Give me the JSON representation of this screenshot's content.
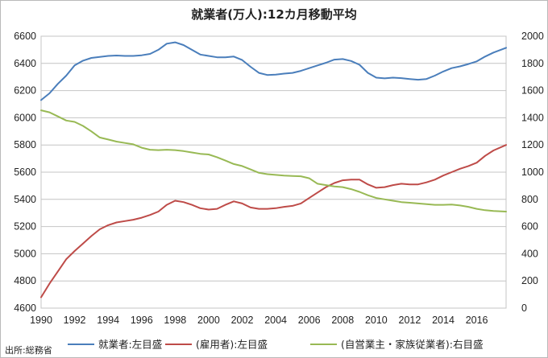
{
  "chart_data": {
    "type": "line",
    "title": "就業者(万人):12カ月移動平均",
    "source": "出所:総務省",
    "x_range": [
      1990,
      2017.75
    ],
    "x_ticks": [
      "1990",
      "1992",
      "1994",
      "1996",
      "1998",
      "2000",
      "2002",
      "2004",
      "2006",
      "2008",
      "2010",
      "2012",
      "2014",
      "2016"
    ],
    "left_axis": {
      "min": 4600,
      "max": 6600,
      "ticks": [
        "4600",
        "4800",
        "5000",
        "5200",
        "5400",
        "5600",
        "5800",
        "6000",
        "6200",
        "6400",
        "6600"
      ]
    },
    "right_axis": {
      "min": 0,
      "max": 2000,
      "ticks": [
        "0",
        "200",
        "400",
        "600",
        "800",
        "1000",
        "1200",
        "1400",
        "1600",
        "1800",
        "2000"
      ]
    },
    "grid": true,
    "legend_position": "bottom",
    "series": [
      {
        "name": "就業者:左目盛",
        "axis": "left",
        "color": "#4a7ebb",
        "points": [
          [
            1990,
            6130
          ],
          [
            1990.5,
            6180
          ],
          [
            1991,
            6250
          ],
          [
            1991.5,
            6310
          ],
          [
            1992,
            6385
          ],
          [
            1992.5,
            6420
          ],
          [
            1993,
            6440
          ],
          [
            1993.5,
            6448
          ],
          [
            1994,
            6455
          ],
          [
            1994.5,
            6458
          ],
          [
            1995,
            6455
          ],
          [
            1995.5,
            6455
          ],
          [
            1996,
            6460
          ],
          [
            1996.5,
            6470
          ],
          [
            1997,
            6500
          ],
          [
            1997.5,
            6545
          ],
          [
            1998,
            6555
          ],
          [
            1998.5,
            6535
          ],
          [
            1999,
            6500
          ],
          [
            1999.5,
            6465
          ],
          [
            2000,
            6455
          ],
          [
            2000.5,
            6445
          ],
          [
            2001,
            6445
          ],
          [
            2001.5,
            6450
          ],
          [
            2002,
            6425
          ],
          [
            2002.5,
            6375
          ],
          [
            2003,
            6330
          ],
          [
            2003.5,
            6315
          ],
          [
            2004,
            6318
          ],
          [
            2004.5,
            6325
          ],
          [
            2005,
            6330
          ],
          [
            2005.5,
            6345
          ],
          [
            2006,
            6365
          ],
          [
            2006.5,
            6385
          ],
          [
            2007,
            6405
          ],
          [
            2007.5,
            6428
          ],
          [
            2008,
            6432
          ],
          [
            2008.5,
            6418
          ],
          [
            2009,
            6390
          ],
          [
            2009.5,
            6330
          ],
          [
            2010,
            6295
          ],
          [
            2010.5,
            6290
          ],
          [
            2011,
            6295
          ],
          [
            2011.5,
            6292
          ],
          [
            2012,
            6285
          ],
          [
            2012.5,
            6280
          ],
          [
            2013,
            6285
          ],
          [
            2013.5,
            6310
          ],
          [
            2014,
            6340
          ],
          [
            2014.5,
            6365
          ],
          [
            2015,
            6378
          ],
          [
            2015.5,
            6395
          ],
          [
            2016,
            6415
          ],
          [
            2016.5,
            6450
          ],
          [
            2017,
            6480
          ],
          [
            2017.75,
            6515
          ]
        ]
      },
      {
        "name": "(雇用者):左目盛",
        "axis": "left",
        "color": "#be4b48",
        "points": [
          [
            1990,
            4680
          ],
          [
            1990.5,
            4780
          ],
          [
            1991,
            4870
          ],
          [
            1991.5,
            4960
          ],
          [
            1992,
            5020
          ],
          [
            1992.5,
            5075
          ],
          [
            1993,
            5130
          ],
          [
            1993.5,
            5180
          ],
          [
            1994,
            5210
          ],
          [
            1994.5,
            5230
          ],
          [
            1995,
            5240
          ],
          [
            1995.5,
            5250
          ],
          [
            1996,
            5265
          ],
          [
            1996.5,
            5285
          ],
          [
            1997,
            5310
          ],
          [
            1997.5,
            5360
          ],
          [
            1998,
            5390
          ],
          [
            1998.5,
            5380
          ],
          [
            1999,
            5360
          ],
          [
            1999.5,
            5335
          ],
          [
            2000,
            5325
          ],
          [
            2000.5,
            5330
          ],
          [
            2001,
            5360
          ],
          [
            2001.5,
            5385
          ],
          [
            2002,
            5370
          ],
          [
            2002.5,
            5340
          ],
          [
            2003,
            5330
          ],
          [
            2003.5,
            5330
          ],
          [
            2004,
            5335
          ],
          [
            2004.5,
            5345
          ],
          [
            2005,
            5352
          ],
          [
            2005.5,
            5370
          ],
          [
            2006,
            5410
          ],
          [
            2006.5,
            5450
          ],
          [
            2007,
            5490
          ],
          [
            2007.5,
            5520
          ],
          [
            2008,
            5540
          ],
          [
            2008.5,
            5545
          ],
          [
            2009,
            5545
          ],
          [
            2009.5,
            5510
          ],
          [
            2010,
            5485
          ],
          [
            2010.5,
            5490
          ],
          [
            2011,
            5505
          ],
          [
            2011.5,
            5515
          ],
          [
            2012,
            5510
          ],
          [
            2012.5,
            5510
          ],
          [
            2013,
            5525
          ],
          [
            2013.5,
            5545
          ],
          [
            2014,
            5575
          ],
          [
            2014.5,
            5600
          ],
          [
            2015,
            5625
          ],
          [
            2015.5,
            5645
          ],
          [
            2016,
            5670
          ],
          [
            2016.5,
            5720
          ],
          [
            2017,
            5760
          ],
          [
            2017.75,
            5800
          ]
        ]
      },
      {
        "name": "(自営業主・家族従業者):右目盛",
        "axis": "right",
        "color": "#98b954",
        "points": [
          [
            1990,
            1455
          ],
          [
            1990.5,
            1440
          ],
          [
            1991,
            1410
          ],
          [
            1991.5,
            1380
          ],
          [
            1992,
            1370
          ],
          [
            1992.5,
            1340
          ],
          [
            1993,
            1300
          ],
          [
            1993.5,
            1255
          ],
          [
            1994,
            1240
          ],
          [
            1994.5,
            1225
          ],
          [
            1995,
            1215
          ],
          [
            1995.5,
            1205
          ],
          [
            1996,
            1180
          ],
          [
            1996.5,
            1165
          ],
          [
            1997,
            1162
          ],
          [
            1997.5,
            1165
          ],
          [
            1998,
            1162
          ],
          [
            1998.5,
            1155
          ],
          [
            1999,
            1145
          ],
          [
            1999.5,
            1135
          ],
          [
            2000,
            1130
          ],
          [
            2000.5,
            1110
          ],
          [
            2001,
            1085
          ],
          [
            2001.5,
            1060
          ],
          [
            2002,
            1045
          ],
          [
            2002.5,
            1020
          ],
          [
            2003,
            995
          ],
          [
            2003.5,
            985
          ],
          [
            2004,
            980
          ],
          [
            2004.5,
            975
          ],
          [
            2005,
            972
          ],
          [
            2005.5,
            970
          ],
          [
            2006,
            955
          ],
          [
            2006.5,
            915
          ],
          [
            2007,
            905
          ],
          [
            2007.5,
            895
          ],
          [
            2008,
            890
          ],
          [
            2008.5,
            875
          ],
          [
            2009,
            855
          ],
          [
            2009.5,
            830
          ],
          [
            2010,
            810
          ],
          [
            2010.5,
            800
          ],
          [
            2011,
            790
          ],
          [
            2011.5,
            780
          ],
          [
            2012,
            775
          ],
          [
            2012.5,
            770
          ],
          [
            2013,
            765
          ],
          [
            2013.5,
            760
          ],
          [
            2014,
            760
          ],
          [
            2014.5,
            762
          ],
          [
            2015,
            755
          ],
          [
            2015.5,
            745
          ],
          [
            2016,
            730
          ],
          [
            2016.5,
            720
          ],
          [
            2017,
            715
          ],
          [
            2017.75,
            710
          ]
        ]
      }
    ]
  }
}
